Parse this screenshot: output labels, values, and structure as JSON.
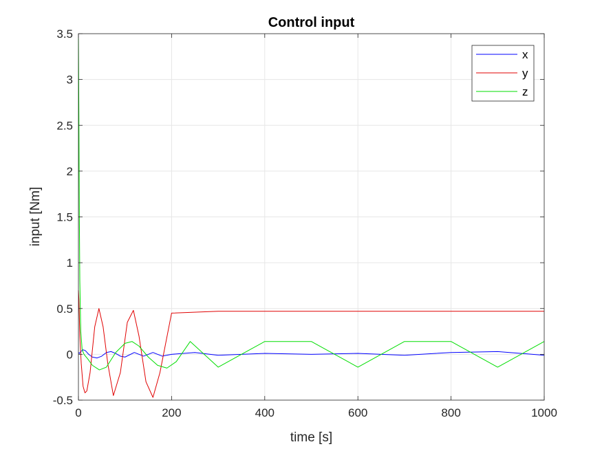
{
  "chart_data": {
    "type": "line",
    "title": "Control input",
    "xlabel": "time [s]",
    "ylabel": "input [Nm]",
    "xlim": [
      0,
      1000
    ],
    "ylim": [
      -0.5,
      3.5
    ],
    "xticks": [
      0,
      200,
      400,
      600,
      800,
      1000
    ],
    "xtick_labels": [
      "0",
      "200",
      "400",
      "600",
      "800",
      "1000"
    ],
    "yticks": [
      -0.5,
      0,
      0.5,
      1,
      1.5,
      2,
      2.5,
      3,
      3.5
    ],
    "ytick_labels": [
      "-0.5",
      "0",
      "0.5",
      "1",
      "1.5",
      "2",
      "2.5",
      "3",
      "3.5"
    ],
    "grid": true,
    "legend_position": "top-right",
    "series": [
      {
        "name": "x",
        "color": "#0000ff",
        "x": [
          0,
          2,
          5,
          10,
          15,
          22,
          30,
          40,
          50,
          60,
          70,
          80,
          90,
          100,
          120,
          140,
          160,
          180,
          200,
          250,
          300,
          400,
          500,
          600,
          700,
          800,
          900,
          1000
        ],
        "y": [
          0.02,
          0.01,
          0.03,
          0.05,
          0.04,
          0.0,
          -0.03,
          -0.04,
          -0.02,
          0.02,
          0.03,
          0.01,
          -0.02,
          -0.03,
          0.02,
          -0.02,
          0.02,
          -0.02,
          0.0,
          0.02,
          -0.01,
          0.01,
          0.0,
          0.01,
          -0.01,
          0.02,
          0.03,
          -0.01
        ]
      },
      {
        "name": "y",
        "color": "#e00000",
        "x": [
          0,
          1,
          3,
          6,
          10,
          14,
          18,
          25,
          35,
          44,
          53,
          63,
          75,
          90,
          105,
          118,
          130,
          145,
          160,
          175,
          200,
          300,
          400,
          500,
          600,
          700,
          800,
          900,
          1000
        ],
        "y": [
          0.7,
          0.6,
          0.2,
          -0.1,
          -0.35,
          -0.42,
          -0.4,
          -0.2,
          0.3,
          0.5,
          0.3,
          -0.1,
          -0.45,
          -0.2,
          0.35,
          0.48,
          0.2,
          -0.3,
          -0.47,
          -0.2,
          0.45,
          0.47,
          0.47,
          0.47,
          0.47,
          0.47,
          0.47,
          0.47,
          0.47
        ]
      },
      {
        "name": "z",
        "color": "#00dd00",
        "x": [
          0,
          1,
          2,
          3,
          5,
          8,
          12,
          20,
          30,
          45,
          60,
          80,
          100,
          115,
          130,
          150,
          170,
          190,
          210,
          240,
          300,
          400,
          500,
          600,
          700,
          800,
          900,
          1000
        ],
        "y": [
          3.45,
          2.6,
          1.5,
          0.8,
          0.25,
          0.05,
          0.0,
          -0.05,
          -0.12,
          -0.17,
          -0.14,
          0.02,
          0.12,
          0.14,
          0.09,
          -0.03,
          -0.12,
          -0.15,
          -0.08,
          0.14,
          -0.14,
          0.14,
          0.14,
          -0.14,
          0.14,
          0.14,
          -0.14,
          0.14
        ]
      }
    ]
  }
}
